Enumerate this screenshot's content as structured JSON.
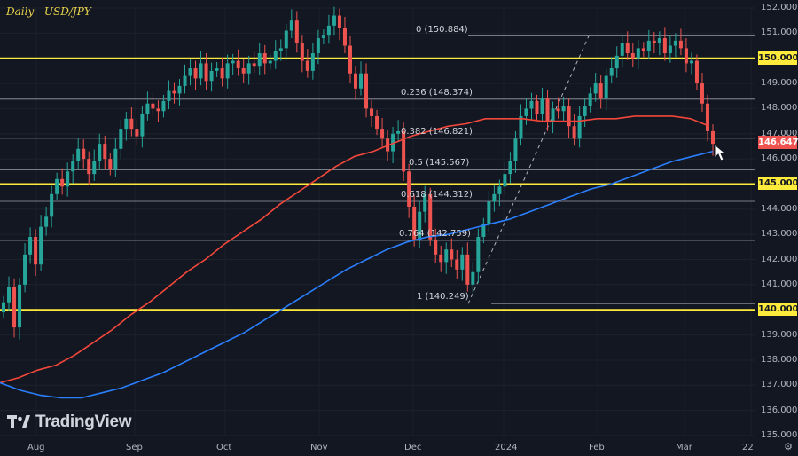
{
  "header": {
    "title": "Daily - USD/JPY"
  },
  "branding": {
    "logo_text": "TradingView"
  },
  "colors": {
    "background": "#131722",
    "bull": "#26a69a",
    "bear": "#ef5350",
    "ma_red": "#f2473a",
    "ma_blue": "#2a7fff",
    "support_line": "#ffeb3b",
    "fib_line": "#b2b5be",
    "text": "#b2b5be"
  },
  "chart_data": {
    "type": "candlestick",
    "title": "Daily - USD/JPY",
    "x_ticks": [
      "Aug",
      "Sep",
      "Oct",
      "Nov",
      "Dec",
      "2024",
      "Feb",
      "Mar",
      "22"
    ],
    "y_ticks": [
      "152.000",
      "151.000",
      "150.000",
      "149.000",
      "148.000",
      "147.000",
      "146.000",
      "145.000",
      "144.000",
      "143.000",
      "142.000",
      "141.000",
      "140.000",
      "139.000",
      "138.000",
      "137.000",
      "136.000",
      "135.000"
    ],
    "ylim": [
      135.0,
      152.0
    ],
    "price_levels": [
      {
        "label": "150.000",
        "value": 150.0
      },
      {
        "label": "145.000",
        "value": 145.0
      },
      {
        "label": "140.000",
        "value": 140.0
      }
    ],
    "current_price": {
      "label": "146.647",
      "value": 146.647
    },
    "fibonacci": [
      {
        "label": "0 (150.884)",
        "value": 150.884
      },
      {
        "label": "0.236 (148.374)",
        "value": 148.374
      },
      {
        "label": "0.382 (146.821)",
        "value": 146.821
      },
      {
        "label": "0.5 (145.567)",
        "value": 145.567
      },
      {
        "label": "0.618 (144.312)",
        "value": 144.312
      },
      {
        "label": "0.764 (142.759)",
        "value": 142.759
      },
      {
        "label": "1 (140.249)",
        "value": 140.249
      }
    ],
    "close_path": [
      140.3,
      140.9,
      139.3,
      141.0,
      142.2,
      142.9,
      141.8,
      143.3,
      143.7,
      144.6,
      145.2,
      144.9,
      145.5,
      145.9,
      146.4,
      146.0,
      145.4,
      145.9,
      146.6,
      146.0,
      145.6,
      146.4,
      147.2,
      147.6,
      147.2,
      146.9,
      147.8,
      148.2,
      148.0,
      147.9,
      148.3,
      148.7,
      148.6,
      148.9,
      149.3,
      149.6,
      149.2,
      149.8,
      149.1,
      149.5,
      149.6,
      149.2,
      149.8,
      149.9,
      149.6,
      149.4,
      149.8,
      149.7,
      150.2,
      149.8,
      149.9,
      150.3,
      150.4,
      151.1,
      151.5,
      150.6,
      149.9,
      149.5,
      150.2,
      150.8,
      150.9,
      151.3,
      151.7,
      151.2,
      150.5,
      149.4,
      148.8,
      149.4,
      148.0,
      147.7,
      147.2,
      146.8,
      146.3,
      147.0,
      147.1,
      145.5,
      144.1,
      142.8,
      143.9,
      144.6,
      142.8,
      142.2,
      141.9,
      142.4,
      142.0,
      141.6,
      142.2,
      141.0,
      141.5,
      142.9,
      143.4,
      144.3,
      144.6,
      144.9,
      145.4,
      145.9,
      146.8,
      147.7,
      148.0,
      148.3,
      147.8,
      148.4,
      147.5,
      148.0,
      147.9,
      148.1,
      147.3,
      146.8,
      147.7,
      148.1,
      148.6,
      149.0,
      148.4,
      149.3,
      149.6,
      150.1,
      150.6,
      150.2,
      150.0,
      150.4,
      150.3,
      150.7,
      150.6,
      150.8,
      150.2,
      150.5,
      150.7,
      150.4,
      149.8,
      149.9,
      149.0,
      148.2,
      147.1,
      146.6
    ],
    "ma_red_path": [
      137.1,
      137.3,
      137.6,
      137.8,
      138.2,
      138.7,
      139.2,
      139.8,
      140.3,
      140.9,
      141.5,
      142.0,
      142.6,
      143.1,
      143.6,
      144.2,
      144.7,
      145.2,
      145.7,
      146.1,
      146.3,
      146.6,
      146.9,
      147.1,
      147.3,
      147.4,
      147.6,
      147.6,
      147.6,
      147.5,
      147.5,
      147.5,
      147.6,
      147.6,
      147.7,
      147.7,
      147.7,
      147.6,
      147.3
    ],
    "ma_blue_path": [
      137.1,
      136.8,
      136.6,
      136.5,
      136.5,
      136.7,
      136.9,
      137.2,
      137.5,
      137.9,
      138.3,
      138.7,
      139.1,
      139.6,
      140.1,
      140.6,
      141.1,
      141.6,
      142.0,
      142.4,
      142.7,
      142.9,
      143.0,
      143.2,
      143.4,
      143.6,
      143.9,
      144.2,
      144.5,
      144.8,
      145.0,
      145.3,
      145.6,
      145.9,
      146.1,
      146.3
    ],
    "annotations": [
      "cursor pointer near current price"
    ]
  }
}
